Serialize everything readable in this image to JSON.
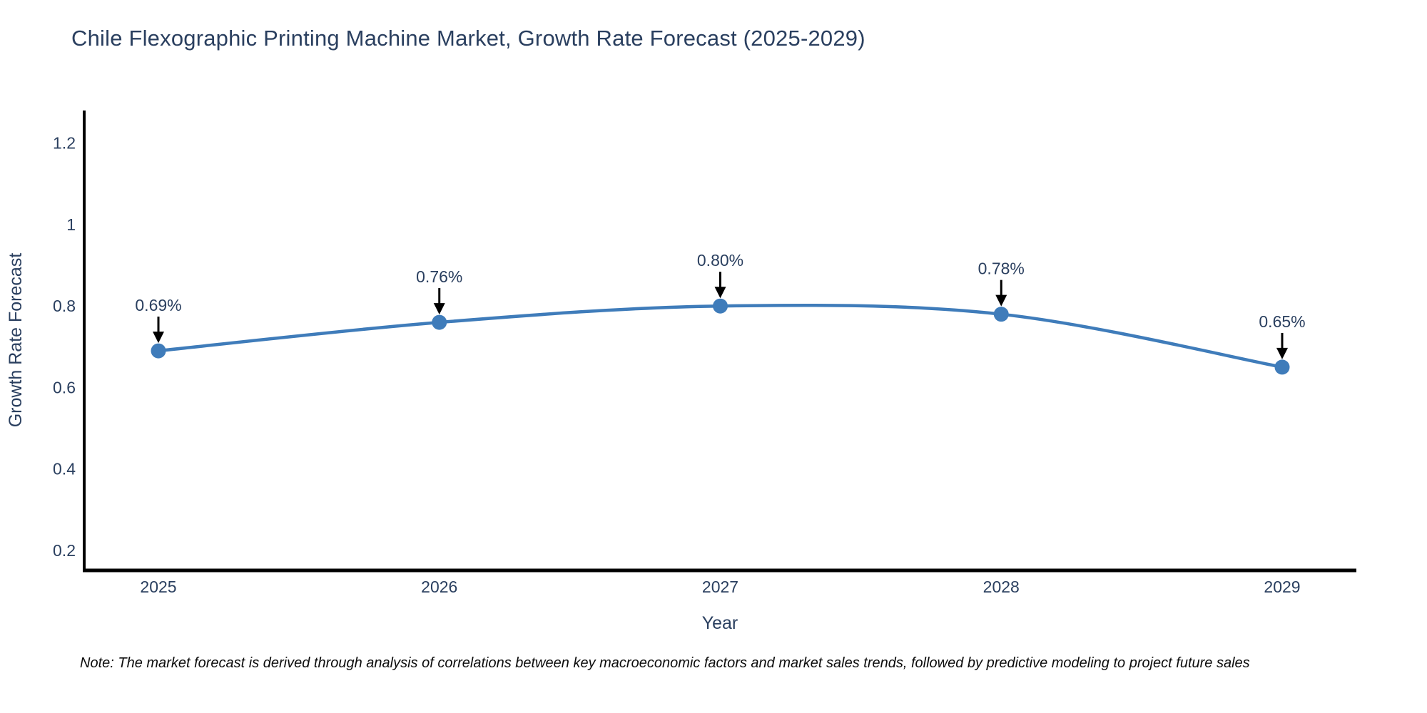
{
  "header": {
    "title": "Chile Flexographic Printing Machine Market, Growth Rate Forecast (2025-2029)"
  },
  "footer": {
    "note": "Note: The market forecast is derived through analysis of correlations between key macroeconomic factors and market sales trends, followed by predictive modeling to project future sales"
  },
  "chart_data": {
    "type": "line",
    "title": "Chile Flexographic Printing Machine Market, Growth Rate Forecast (2025-2029)",
    "xlabel": "Year",
    "ylabel": "Growth Rate Forecast",
    "categories": [
      "2025",
      "2026",
      "2027",
      "2028",
      "2029"
    ],
    "values": [
      0.69,
      0.76,
      0.8,
      0.78,
      0.65
    ],
    "point_labels": [
      "0.69%",
      "0.76%",
      "0.80%",
      "0.78%",
      "0.65%"
    ],
    "yticks": [
      0.2,
      0.4,
      0.6,
      0.8,
      1,
      1.2
    ],
    "ytick_labels": [
      "0.2",
      "0.4",
      "0.6",
      "0.8",
      "1",
      "1.2"
    ],
    "ylim": [
      0.151,
      1.28
    ],
    "line_shape": "spline",
    "grid": false,
    "legend": false,
    "colors": {
      "line": "#3f7cba",
      "marker": "#3f7cba",
      "arrow": "#000000",
      "annotation_text": "#2a3f5f",
      "axis_line": "#000000",
      "tick_text": "#2a3f5f",
      "title_text": "#2a3f5f"
    }
  }
}
